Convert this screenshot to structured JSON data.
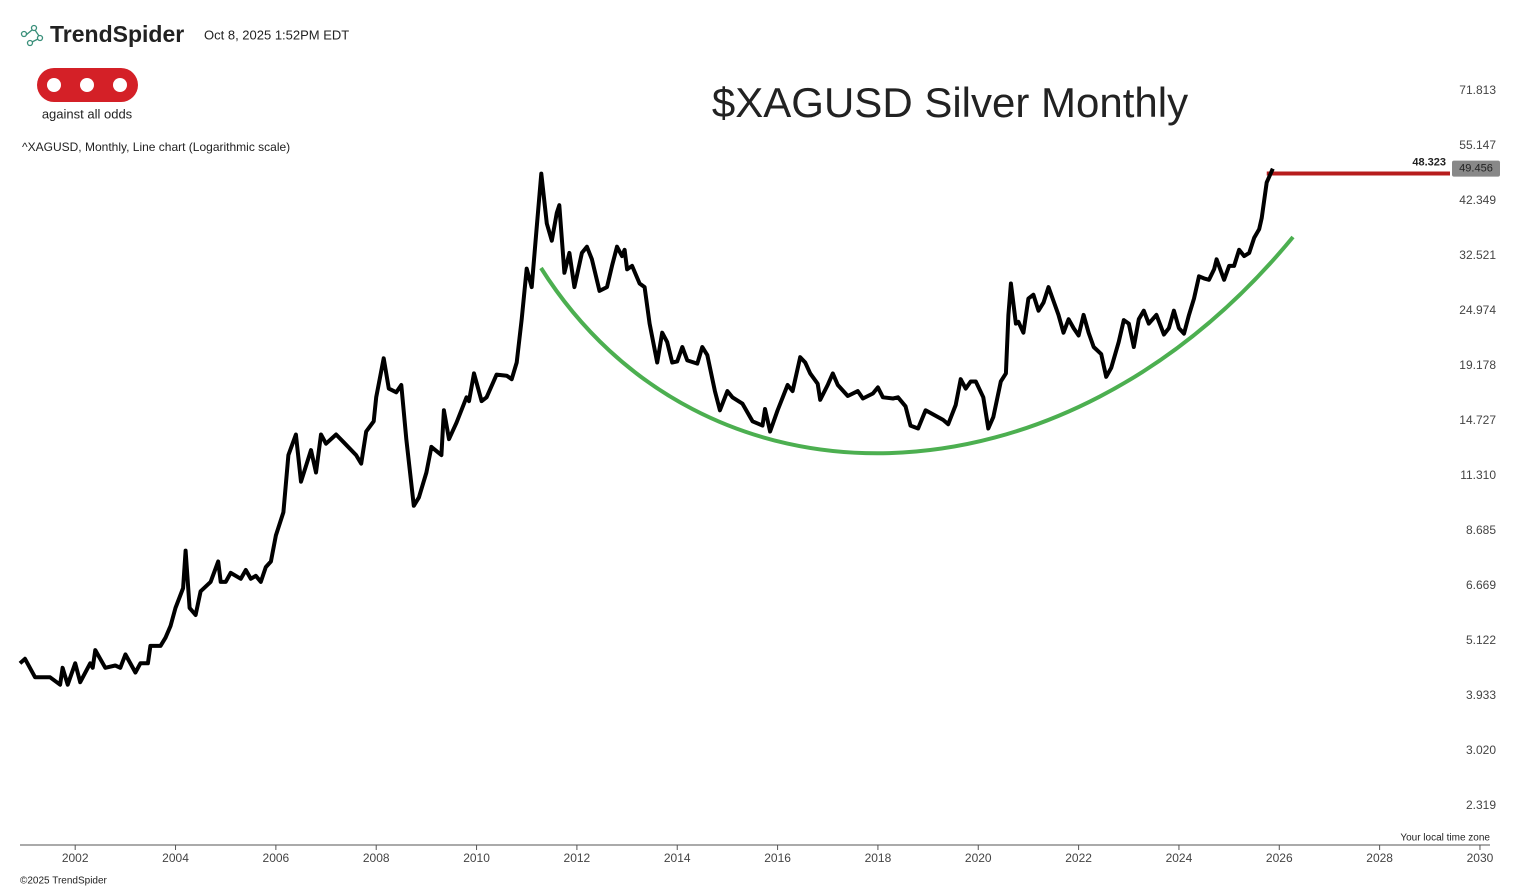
{
  "header": {
    "brand": "TrendSpider",
    "timestamp": "Oct 8, 2025 1:52PM EDT"
  },
  "logo": {
    "caption": "against all odds"
  },
  "footer": {
    "copyright": "©2025 TrendSpider",
    "timezone_note": "Your local time zone"
  },
  "chart_data": {
    "type": "line",
    "title": "$XAGUSD Silver Monthly",
    "subtitle": "^XAGUSD, Monthly, Line chart (Logarithmic scale)",
    "log_scale": true,
    "grid": false,
    "color": "#000000",
    "x": [
      2000.9,
      2001.0,
      2001.2,
      2001.5,
      2001.7,
      2001.75,
      2001.85,
      2002.0,
      2002.1,
      2002.3,
      2002.35,
      2002.4,
      2002.6,
      2002.8,
      2002.9,
      2003.0,
      2003.2,
      2003.3,
      2003.45,
      2003.5,
      2003.7,
      2003.8,
      2003.9,
      2004.0,
      2004.15,
      2004.2,
      2004.28,
      2004.4,
      2004.5,
      2004.7,
      2004.85,
      2004.9,
      2005.0,
      2005.1,
      2005.3,
      2005.4,
      2005.5,
      2005.6,
      2005.7,
      2005.8,
      2005.9,
      2006.0,
      2006.15,
      2006.25,
      2006.4,
      2006.5,
      2006.7,
      2006.8,
      2006.9,
      2007.0,
      2007.2,
      2007.35,
      2007.6,
      2007.7,
      2007.8,
      2007.95,
      2008.0,
      2008.15,
      2008.25,
      2008.4,
      2008.5,
      2008.6,
      2008.75,
      2008.85,
      2009.0,
      2009.1,
      2009.3,
      2009.35,
      2009.45,
      2009.6,
      2009.8,
      2009.85,
      2009.95,
      2010.1,
      2010.2,
      2010.4,
      2010.6,
      2010.7,
      2010.8,
      2010.9,
      2011.0,
      2011.1,
      2011.2,
      2011.29,
      2011.4,
      2011.5,
      2011.6,
      2011.65,
      2011.75,
      2011.85,
      2011.95,
      2012.1,
      2012.2,
      2012.3,
      2012.45,
      2012.6,
      2012.7,
      2012.8,
      2012.9,
      2012.95,
      2013.0,
      2013.1,
      2013.25,
      2013.35,
      2013.45,
      2013.6,
      2013.7,
      2013.8,
      2013.9,
      2014.0,
      2014.1,
      2014.2,
      2014.4,
      2014.5,
      2014.6,
      2014.75,
      2014.85,
      2015.0,
      2015.1,
      2015.3,
      2015.5,
      2015.7,
      2015.75,
      2015.85,
      2016.0,
      2016.2,
      2016.3,
      2016.45,
      2016.55,
      2016.65,
      2016.8,
      2016.85,
      2017.0,
      2017.1,
      2017.2,
      2017.4,
      2017.6,
      2017.7,
      2017.9,
      2018.0,
      2018.1,
      2018.3,
      2018.4,
      2018.55,
      2018.65,
      2018.8,
      2018.95,
      2019.1,
      2019.3,
      2019.4,
      2019.55,
      2019.65,
      2019.75,
      2019.85,
      2019.95,
      2020.1,
      2020.2,
      2020.3,
      2020.45,
      2020.55,
      2020.6,
      2020.65,
      2020.75,
      2020.8,
      2020.9,
      2021.0,
      2021.1,
      2021.2,
      2021.3,
      2021.4,
      2021.5,
      2021.6,
      2021.7,
      2021.8,
      2021.9,
      2022.0,
      2022.1,
      2022.2,
      2022.3,
      2022.45,
      2022.55,
      2022.65,
      2022.8,
      2022.9,
      2023.0,
      2023.1,
      2023.2,
      2023.3,
      2023.4,
      2023.55,
      2023.7,
      2023.8,
      2023.9,
      2024.0,
      2024.1,
      2024.2,
      2024.3,
      2024.4,
      2024.5,
      2024.6,
      2024.7,
      2024.75,
      2024.9,
      2025.0,
      2025.1,
      2025.2,
      2025.3,
      2025.4,
      2025.5,
      2025.6,
      2025.65,
      2025.75,
      2025.87
    ],
    "values": [
      4.6,
      4.7,
      4.3,
      4.3,
      4.15,
      4.5,
      4.15,
      4.6,
      4.2,
      4.6,
      4.5,
      4.9,
      4.5,
      4.55,
      4.5,
      4.8,
      4.4,
      4.6,
      4.6,
      5.0,
      5.0,
      5.2,
      5.5,
      6.0,
      6.6,
      7.9,
      6.0,
      5.8,
      6.5,
      6.8,
      7.5,
      6.8,
      6.8,
      7.1,
      6.9,
      7.2,
      6.9,
      7.0,
      6.8,
      7.3,
      7.5,
      8.5,
      9.5,
      12.5,
      13.8,
      11.0,
      12.8,
      11.5,
      13.8,
      13.2,
      13.8,
      13.3,
      12.5,
      12.0,
      14.0,
      14.7,
      16.5,
      19.9,
      17.2,
      16.9,
      17.5,
      13.5,
      9.8,
      10.2,
      11.5,
      13.0,
      12.5,
      15.5,
      13.5,
      14.6,
      16.5,
      16.2,
      18.5,
      16.2,
      16.5,
      18.4,
      18.3,
      18.0,
      19.5,
      24,
      30.6,
      28,
      37.5,
      48.3,
      38,
      35,
      40,
      41.5,
      30,
      33,
      28,
      33,
      34,
      32,
      27.5,
      28,
      31,
      34,
      32.5,
      33.5,
      30.5,
      31,
      28.5,
      28,
      23.5,
      19.5,
      22.5,
      21.5,
      19.5,
      19.6,
      21,
      19.7,
      19.4,
      21,
      20.2,
      17,
      15.5,
      17,
      16.5,
      16,
      14.7,
      14.4,
      15.6,
      14,
      15.5,
      17.5,
      17,
      20,
      19.5,
      18.5,
      17.6,
      16.3,
      17.5,
      18.5,
      17.5,
      16.6,
      17.0,
      16.4,
      16.8,
      17.3,
      16.5,
      16.4,
      16.5,
      15.8,
      14.4,
      14.2,
      15.5,
      15.2,
      14.8,
      14.5,
      15.9,
      18.0,
      17.2,
      17.8,
      17.8,
      16.5,
      14.2,
      15.0,
      17.8,
      18.5,
      24.5,
      28.5,
      23.5,
      23.7,
      22.5,
      26.5,
      27,
      25,
      26,
      28,
      26.2,
      24.5,
      22.5,
      24,
      23,
      22.2,
      24.5,
      22.5,
      21,
      20.3,
      18.2,
      19.0,
      21.5,
      23.9,
      23.5,
      21,
      24,
      25,
      23.5,
      24.5,
      22.3,
      23,
      25,
      23.0,
      22.4,
      24.5,
      26.5,
      29.5,
      29.2,
      29,
      30.5,
      32,
      29.0,
      31,
      31,
      33.5,
      32.5,
      33,
      35.5,
      37,
      39,
      46.3,
      49.456
    ],
    "resistance": {
      "value": 48.323,
      "color": "#b71c1c"
    },
    "trend_color": "#4caf50",
    "xlim": [
      2000.9,
      2030.2
    ],
    "xticks": [
      2002,
      2004,
      2006,
      2008,
      2010,
      2012,
      2014,
      2016,
      2018,
      2020,
      2022,
      2024,
      2026,
      2028,
      2030
    ],
    "ylim": [
      1.922,
      83.34
    ],
    "yticks": [
      71.813,
      55.147,
      42.349,
      32.521,
      24.974,
      19.178,
      14.727,
      {
        "value": 11.31,
        "label": "11.310"
      },
      8.685,
      6.669,
      5.122,
      3.933,
      {
        "value": 3.02,
        "label": "3.020"
      },
      2.319
    ]
  }
}
